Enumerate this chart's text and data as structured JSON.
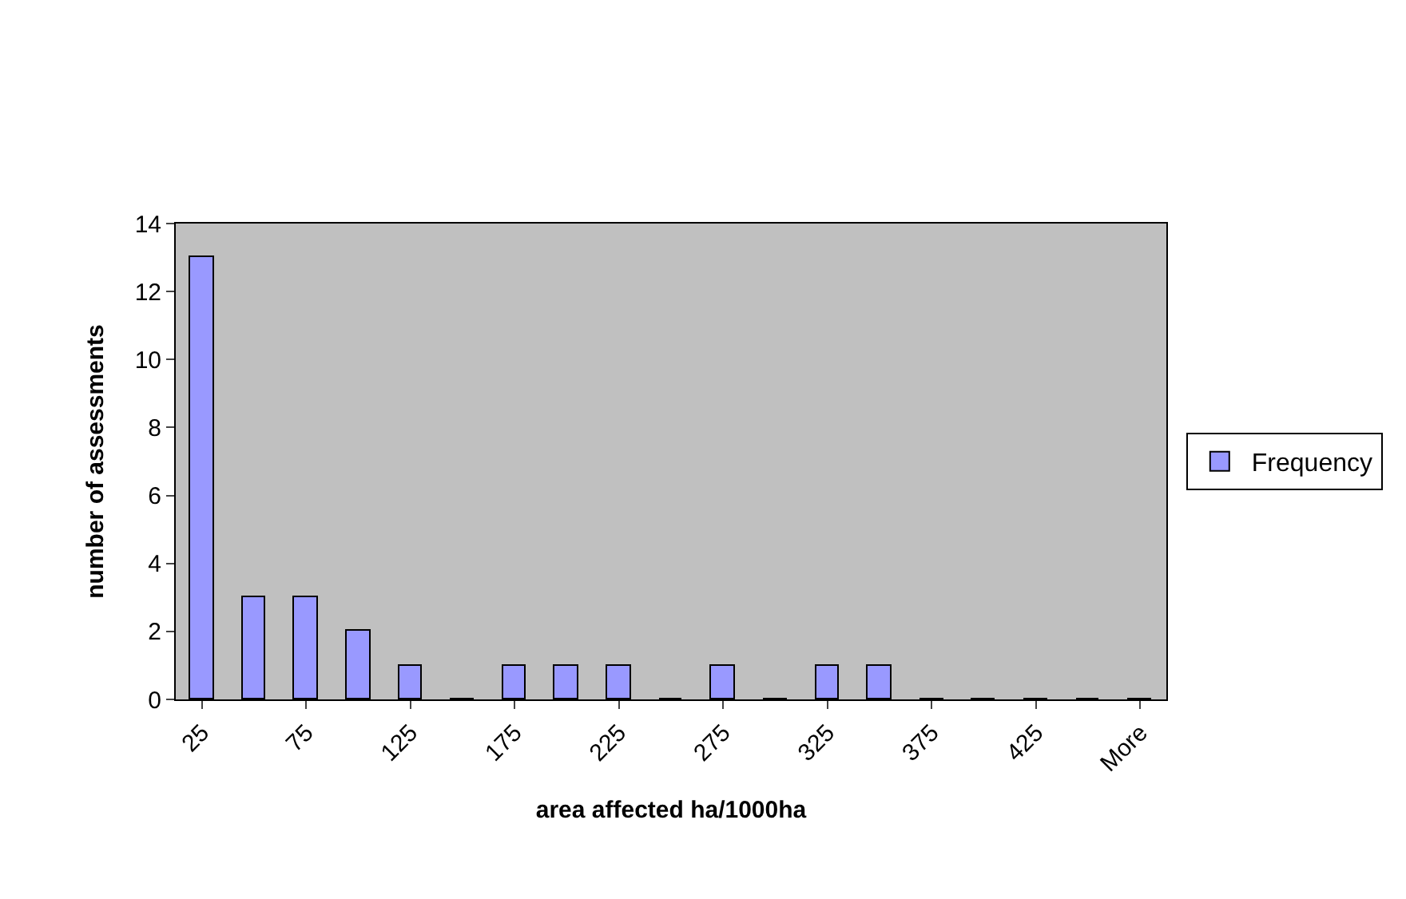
{
  "chart_data": {
    "type": "bar",
    "xlabel": "area affected ha/1000ha",
    "ylabel": "number of assessments",
    "categories": [
      "25",
      null,
      "75",
      null,
      "125",
      null,
      "175",
      null,
      "225",
      null,
      "275",
      null,
      "325",
      null,
      "375",
      null,
      "425",
      null,
      "More"
    ],
    "series": [
      {
        "name": "Frequency",
        "color": "#9999ff",
        "values": [
          13,
          3,
          3,
          2,
          1,
          0,
          1,
          1,
          1,
          0,
          1,
          0,
          1,
          1,
          0,
          0,
          0,
          0,
          0
        ]
      }
    ],
    "ylim": [
      0,
      14
    ],
    "yticks": [
      0,
      2,
      4,
      6,
      8,
      10,
      12,
      14
    ],
    "grid": false,
    "legend": "right"
  }
}
